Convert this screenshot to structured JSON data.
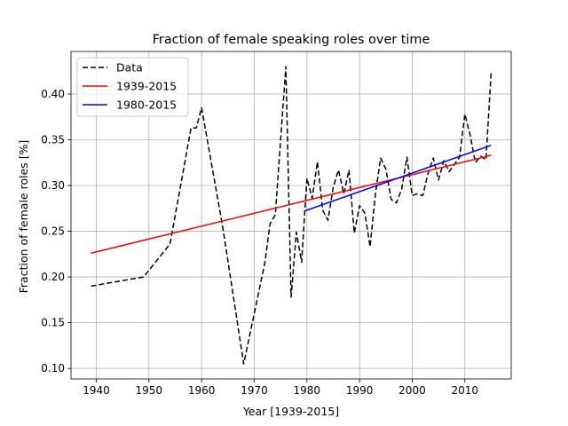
{
  "chart_data": {
    "type": "line",
    "title": "Fraction of female speaking roles over time",
    "xlabel": "Year [1939-2015]",
    "ylabel": "Fraction of female roles [%]",
    "xlim": [
      1935.2,
      2018.8
    ],
    "ylim": [
      0.0885,
      0.4465
    ],
    "xticks": [
      1940,
      1950,
      1960,
      1970,
      1980,
      1990,
      2000,
      2010
    ],
    "yticks": [
      0.1,
      0.15,
      0.2,
      0.25,
      0.3,
      0.35,
      0.4
    ],
    "xtick_labels": [
      "1940",
      "1950",
      "1960",
      "1970",
      "1980",
      "1990",
      "2000",
      "2010"
    ],
    "ytick_labels": [
      "0.10",
      "0.15",
      "0.20",
      "0.25",
      "0.30",
      "0.35",
      "0.40"
    ],
    "grid": true,
    "legend": "top-left",
    "series": [
      {
        "name": "Data",
        "style": "dashed",
        "color": "#000000",
        "x": [
          1939,
          1949,
          1954,
          1958,
          1959,
          1960,
          1964,
          1968,
          1972,
          1973,
          1974,
          1976,
          1977,
          1978,
          1979,
          1980,
          1981,
          1982,
          1983,
          1984,
          1985,
          1986,
          1987,
          1988,
          1989,
          1990,
          1991,
          1992,
          1993,
          1994,
          1995,
          1996,
          1997,
          1998,
          1999,
          2000,
          2001,
          2002,
          2003,
          2004,
          2005,
          2006,
          2007,
          2008,
          2009,
          2010,
          2011,
          2012,
          2013,
          2014,
          2015
        ],
        "y": [
          0.19,
          0.2,
          0.236,
          0.363,
          0.363,
          0.385,
          0.255,
          0.105,
          0.215,
          0.258,
          0.268,
          0.43,
          0.178,
          0.249,
          0.216,
          0.308,
          0.286,
          0.326,
          0.273,
          0.262,
          0.298,
          0.317,
          0.291,
          0.317,
          0.248,
          0.278,
          0.27,
          0.233,
          0.29,
          0.33,
          0.318,
          0.285,
          0.281,
          0.296,
          0.331,
          0.289,
          0.291,
          0.289,
          0.313,
          0.33,
          0.306,
          0.327,
          0.315,
          0.323,
          0.331,
          0.378,
          0.355,
          0.325,
          0.332,
          0.328,
          0.424
        ]
      },
      {
        "name": "1939-2015",
        "style": "solid",
        "color": "#ff0000",
        "x": [
          1939,
          2015
        ],
        "y": [
          0.226,
          0.333
        ]
      },
      {
        "name": "1980-2015",
        "style": "solid",
        "color": "#0000ff",
        "x": [
          1979.5,
          2015
        ],
        "y": [
          0.272,
          0.344
        ]
      }
    ]
  }
}
